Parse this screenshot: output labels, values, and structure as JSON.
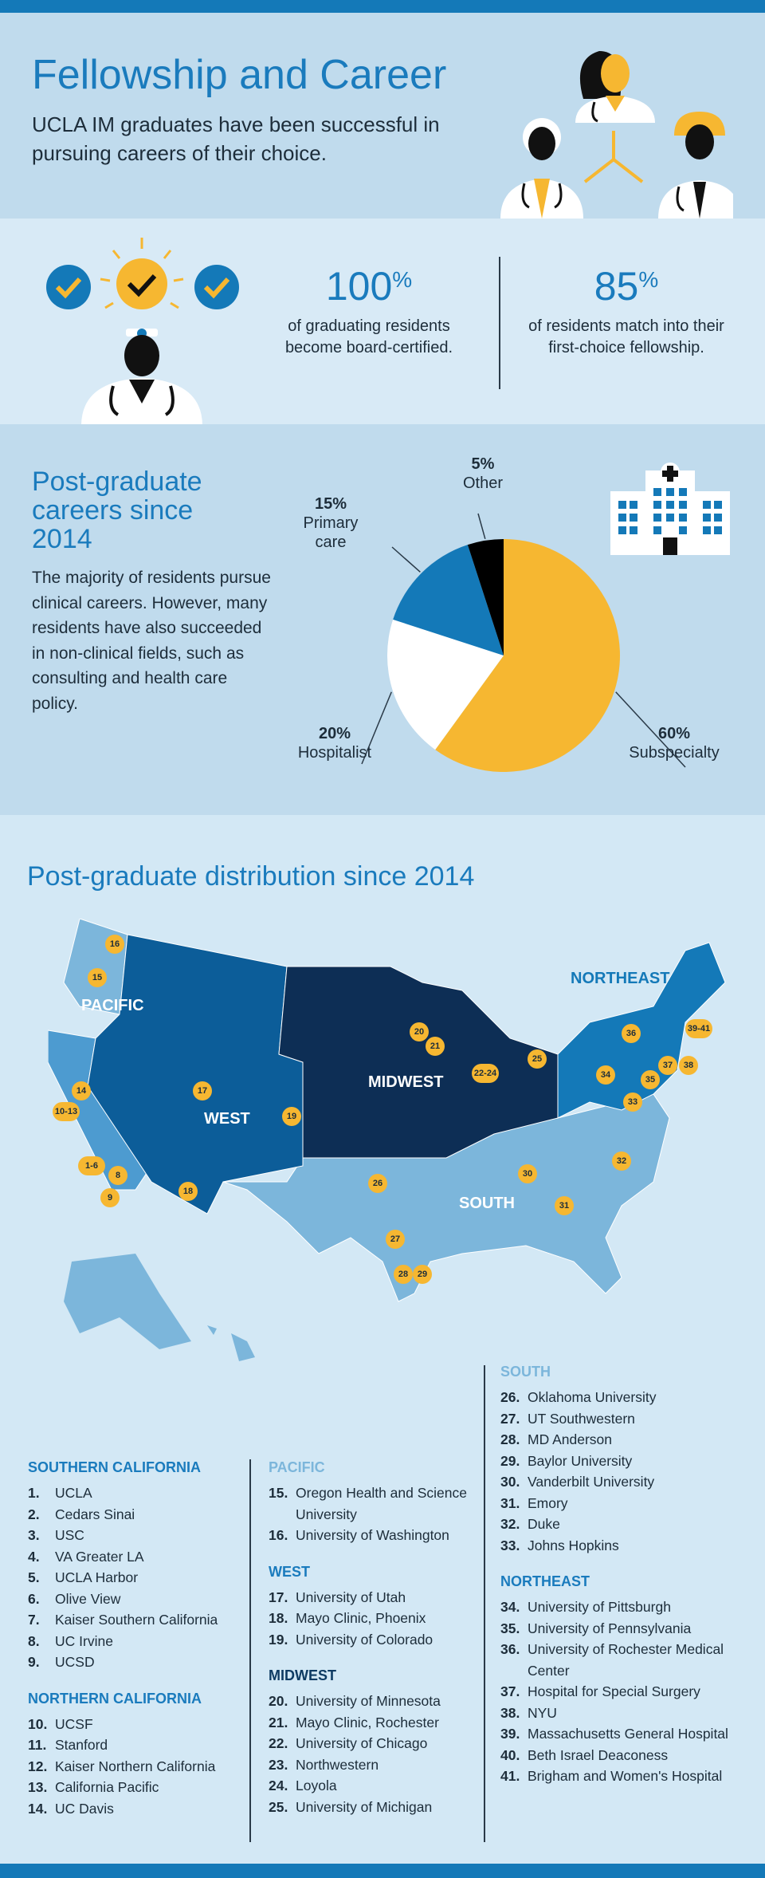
{
  "header": {
    "title": "Fellowship and Career",
    "subtitle": "UCLA IM graduates have been successful in pursuing careers of their choice."
  },
  "stats": [
    {
      "value": "100",
      "unit": "%",
      "text": "of graduating residents become board-certified."
    },
    {
      "value": "85",
      "unit": "%",
      "text": "of residents match into their first-choice fellowship."
    }
  ],
  "careers": {
    "title": "Post-graduate careers since 2014",
    "body": "The majority of residents pursue clinical careers. However, many residents have also succeeded in non-clinical fields, such as consulting and health care policy.",
    "chart_data": {
      "type": "pie",
      "slices": [
        {
          "label": "Subspecialty",
          "value": 60,
          "display": "60%",
          "color": "#f6b731"
        },
        {
          "label": "Hospitalist",
          "value": 20,
          "display": "20%",
          "color": "#ffffff"
        },
        {
          "label": "Primary care",
          "value": 15,
          "display": "15%",
          "color": "#1479b8"
        },
        {
          "label": "Other",
          "value": 5,
          "display": "5%",
          "color": "#000000"
        }
      ]
    }
  },
  "map": {
    "title": "Post-graduate distribution since 2014",
    "regions": [
      "PACIFIC",
      "WEST",
      "MIDWEST",
      "SOUTH",
      "NORTHEAST"
    ],
    "pins": [
      "16",
      "15",
      "14",
      "10-13",
      "17",
      "19",
      "1-6",
      "8",
      "9",
      "18",
      "20",
      "21",
      "22-24",
      "25",
      "26",
      "27",
      "28",
      "29",
      "30",
      "31",
      "32",
      "33",
      "34",
      "35",
      "36",
      "37",
      "38",
      "39-41"
    ]
  },
  "lists": [
    {
      "heading": "SOUTHERN CALIFORNIA",
      "color": "#1a7bbd",
      "items": [
        {
          "n": "1.",
          "name": "UCLA"
        },
        {
          "n": "2.",
          "name": "Cedars Sinai"
        },
        {
          "n": "3.",
          "name": "USC"
        },
        {
          "n": "4.",
          "name": "VA Greater LA"
        },
        {
          "n": "5.",
          "name": "UCLA Harbor"
        },
        {
          "n": "6.",
          "name": "Olive View"
        },
        {
          "n": "7.",
          "name": "Kaiser Southern California"
        },
        {
          "n": "8.",
          "name": "UC Irvine"
        },
        {
          "n": "9.",
          "name": "UCSD"
        }
      ]
    },
    {
      "heading": "NORTHERN CALIFORNIA",
      "color": "#1a7bbd",
      "items": [
        {
          "n": "10.",
          "name": "UCSF"
        },
        {
          "n": "11.",
          "name": "Stanford"
        },
        {
          "n": "12.",
          "name": "Kaiser Northern California"
        },
        {
          "n": "13.",
          "name": "California Pacific"
        },
        {
          "n": "14.",
          "name": "UC Davis"
        }
      ]
    },
    {
      "heading": "PACIFIC",
      "color": "#7cb6db",
      "items": [
        {
          "n": "15.",
          "name": "Oregon Health and Science University"
        },
        {
          "n": "16.",
          "name": "University of Washington"
        }
      ]
    },
    {
      "heading": "WEST",
      "color": "#1a7bbd",
      "items": [
        {
          "n": "17.",
          "name": "University of Utah"
        },
        {
          "n": "18.",
          "name": "Mayo Clinic, Phoenix"
        },
        {
          "n": "19.",
          "name": "University of Colorado"
        }
      ]
    },
    {
      "heading": "MIDWEST",
      "color": "#0e3b63",
      "items": [
        {
          "n": "20.",
          "name": "University of Minnesota"
        },
        {
          "n": "21.",
          "name": "Mayo Clinic, Rochester"
        },
        {
          "n": "22.",
          "name": "University of Chicago"
        },
        {
          "n": "23.",
          "name": "Northwestern"
        },
        {
          "n": "24.",
          "name": "Loyola"
        },
        {
          "n": "25.",
          "name": "University of Michigan"
        }
      ]
    },
    {
      "heading": "SOUTH",
      "color": "#7cb6db",
      "items": [
        {
          "n": "26.",
          "name": "Oklahoma University"
        },
        {
          "n": "27.",
          "name": "UT Southwestern"
        },
        {
          "n": "28.",
          "name": "MD Anderson"
        },
        {
          "n": "29.",
          "name": "Baylor University"
        },
        {
          "n": "30.",
          "name": "Vanderbilt University"
        },
        {
          "n": "31.",
          "name": "Emory"
        },
        {
          "n": "32.",
          "name": "Duke"
        },
        {
          "n": "33.",
          "name": "Johns Hopkins"
        }
      ]
    },
    {
      "heading": "NORTHEAST",
      "color": "#1a7bbd",
      "items": [
        {
          "n": "34.",
          "name": "University of Pittsburgh"
        },
        {
          "n": "35.",
          "name": "University of Pennsylvania"
        },
        {
          "n": "36.",
          "name": "University of Rochester Medical Center"
        },
        {
          "n": "37.",
          "name": "Hospital for Special Surgery"
        },
        {
          "n": "38.",
          "name": "NYU"
        },
        {
          "n": "39.",
          "name": "Massachusetts General Hospital"
        },
        {
          "n": "40.",
          "name": "Beth Israel Deaconess"
        },
        {
          "n": "41.",
          "name": "Brigham and Women's Hospital"
        }
      ]
    }
  ]
}
